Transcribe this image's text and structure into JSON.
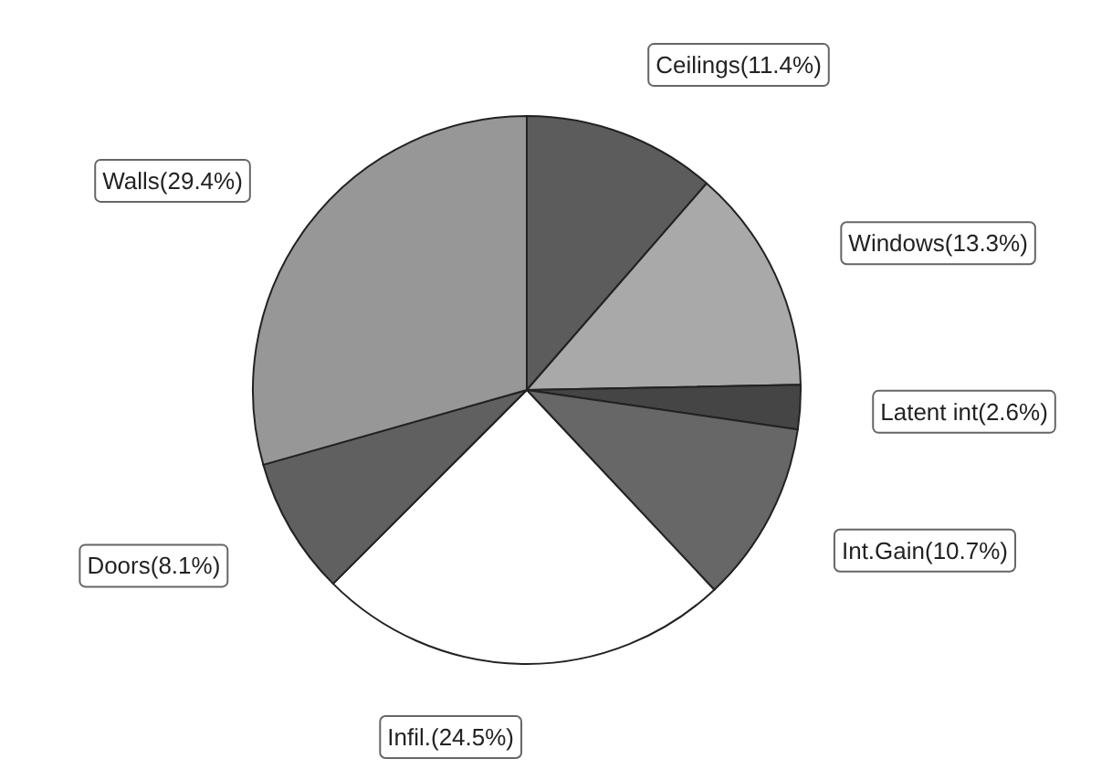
{
  "chart_data": {
    "type": "pie",
    "categories": [
      "Ceilings(11.4%)",
      "Windows(13.3%)",
      "Latent int(2.6%)",
      "Int.Gain(10.7%)",
      "Infil.(24.5%)",
      "Doors(8.1%)",
      "Walls(29.4%)"
    ],
    "values": [
      11.4,
      13.3,
      2.6,
      10.7,
      24.5,
      8.1,
      29.4
    ],
    "colors": [
      "#5c5c5c",
      "#a9a9a9",
      "#454545",
      "#676767",
      "#ffffff",
      "#606060",
      "#979797"
    ]
  }
}
